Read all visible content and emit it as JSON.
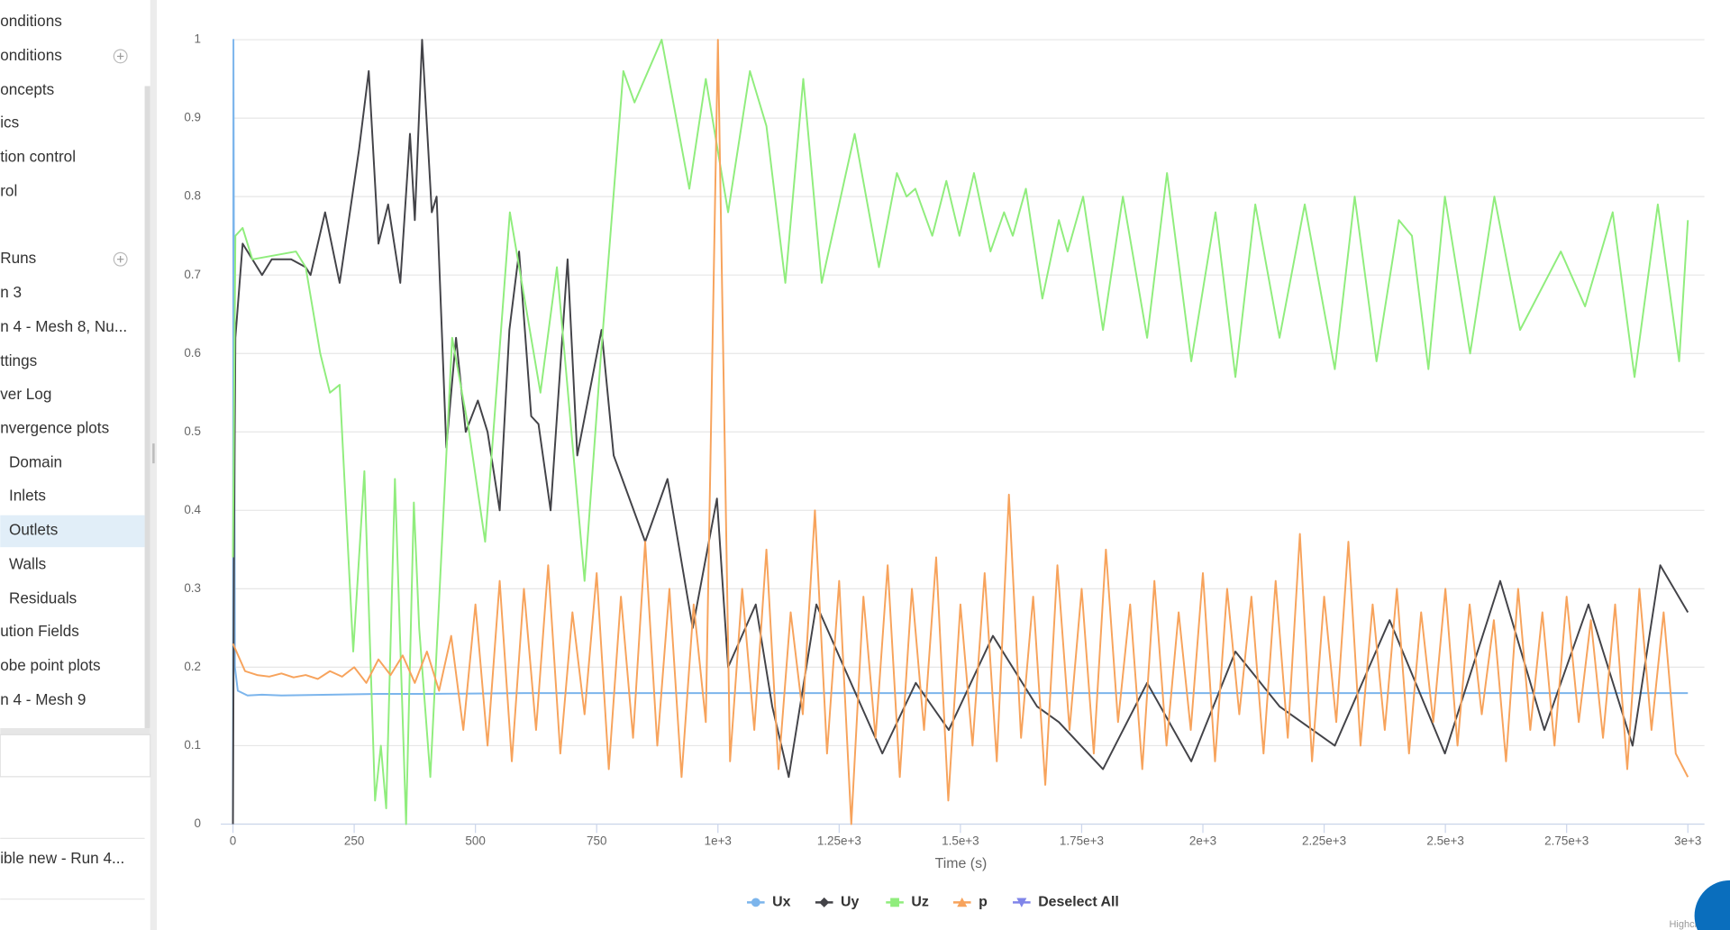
{
  "sidebar": {
    "items": [
      "onditions",
      "onditions",
      "oncepts",
      "ics",
      "tion control",
      "rol",
      "Runs",
      "n 3",
      "n 4 - Mesh 8, Nu...",
      "ttings",
      "ver Log",
      "nvergence plots",
      "Domain",
      "Inlets",
      "Outlets",
      "Walls",
      "Residuals",
      "ution Fields",
      "obe point plots",
      "n 4 - Mesh 9"
    ],
    "lower_item": "ible new - Run 4..."
  },
  "chart_data": {
    "type": "line",
    "xlabel": "Time (s)",
    "credits": "Highcharts.co",
    "deselect": "Deselect All",
    "deselect_color": "#8085e9",
    "xlim": [
      0,
      3000
    ],
    "ylim": [
      0,
      1
    ],
    "xticks": [
      0,
      250,
      500,
      750,
      {
        "value": 1000,
        "label": "1e+3"
      },
      {
        "value": 1250,
        "label": "1.25e+3"
      },
      {
        "value": 1500,
        "label": "1.5e+3"
      },
      {
        "value": 1750,
        "label": "1.75e+3"
      },
      {
        "value": 2000,
        "label": "2e+3"
      },
      {
        "value": 2250,
        "label": "2.25e+3"
      },
      {
        "value": 2500,
        "label": "2.5e+3"
      },
      {
        "value": 2750,
        "label": "2.75e+3"
      },
      {
        "value": 3000,
        "label": "3e+3"
      }
    ],
    "yticks": [
      0,
      0.1,
      0.2,
      0.3,
      0.4,
      0.5,
      0.6,
      0.7,
      0.8,
      0.9,
      1
    ],
    "grid": true,
    "series": [
      {
        "name": "Ux",
        "color": "#7cb5ec",
        "marker": "circle",
        "x": [
          0,
          1,
          4,
          10,
          30,
          60,
          100,
          200,
          300,
          400,
          600,
          1000,
          2000,
          3000
        ],
        "values": [
          0,
          1,
          0.2,
          0.17,
          0.164,
          0.165,
          0.164,
          0.165,
          0.166,
          0.166,
          0.167,
          0.167,
          0.167,
          0.167
        ]
      },
      {
        "name": "Uy",
        "color": "#434348",
        "marker": "diamond",
        "x": [
          0,
          2,
          5,
          20,
          40,
          60,
          80,
          120,
          150,
          160,
          190,
          220,
          260,
          280,
          300,
          320,
          345,
          365,
          375,
          390,
          410,
          420,
          440,
          460,
          480,
          505,
          525,
          550,
          570,
          590,
          615,
          630,
          655,
          690,
          710,
          760,
          785,
          850,
          896,
          948,
          998,
          1021,
          1078,
          1112,
          1146,
          1203,
          1260,
          1339,
          1408,
          1476,
          1567,
          1658,
          1703,
          1794,
          1885,
          1976,
          2067,
          2158,
          2272,
          2385,
          2499,
          2613,
          2704,
          2795,
          2886,
          2943,
          3000
        ],
        "values": [
          0,
          0.33,
          0.62,
          0.74,
          0.72,
          0.7,
          0.72,
          0.72,
          0.71,
          0.7,
          0.78,
          0.69,
          0.86,
          0.96,
          0.74,
          0.79,
          0.69,
          0.88,
          0.77,
          1.0,
          0.78,
          0.8,
          0.48,
          0.62,
          0.5,
          0.54,
          0.5,
          0.4,
          0.63,
          0.73,
          0.52,
          0.51,
          0.4,
          0.72,
          0.47,
          0.63,
          0.47,
          0.36,
          0.44,
          0.25,
          0.415,
          0.2,
          0.28,
          0.15,
          0.06,
          0.28,
          0.2,
          0.09,
          0.18,
          0.12,
          0.24,
          0.15,
          0.13,
          0.07,
          0.18,
          0.08,
          0.22,
          0.15,
          0.1,
          0.26,
          0.09,
          0.31,
          0.12,
          0.28,
          0.1,
          0.33,
          0.27
        ]
      },
      {
        "name": "Uz",
        "color": "#90ed7d",
        "marker": "square",
        "x": [
          0,
          5,
          20,
          40,
          130,
          150,
          180,
          200,
          220,
          248,
          271,
          293,
          305,
          316,
          334,
          357,
          373,
          384,
          407,
          452,
          487,
          520,
          571,
          634,
          668,
          725,
          759,
          805,
          828,
          884,
          941,
          975,
          1021,
          1066,
          1100,
          1139,
          1176,
          1214,
          1282,
          1332,
          1369,
          1389,
          1407,
          1442,
          1471,
          1498,
          1528,
          1562,
          1590,
          1608,
          1635,
          1669,
          1703,
          1721,
          1753,
          1794,
          1835,
          1885,
          1926,
          1976,
          2026,
          2067,
          2108,
          2158,
          2210,
          2272,
          2313,
          2358,
          2404,
          2431,
          2465,
          2499,
          2551,
          2601,
          2654,
          2738,
          2788,
          2845,
          2890,
          2938,
          2982,
          3000
        ],
        "values": [
          0.34,
          0.75,
          0.76,
          0.72,
          0.73,
          0.71,
          0.6,
          0.55,
          0.56,
          0.22,
          0.45,
          0.03,
          0.1,
          0.02,
          0.44,
          0.0,
          0.41,
          0.25,
          0.06,
          0.62,
          0.5,
          0.36,
          0.78,
          0.55,
          0.71,
          0.31,
          0.6,
          0.96,
          0.92,
          1.0,
          0.81,
          0.95,
          0.78,
          0.96,
          0.89,
          0.69,
          0.95,
          0.69,
          0.88,
          0.71,
          0.83,
          0.8,
          0.81,
          0.75,
          0.82,
          0.75,
          0.83,
          0.73,
          0.78,
          0.75,
          0.81,
          0.67,
          0.77,
          0.73,
          0.8,
          0.63,
          0.8,
          0.62,
          0.83,
          0.59,
          0.78,
          0.57,
          0.79,
          0.62,
          0.79,
          0.58,
          0.8,
          0.59,
          0.77,
          0.75,
          0.58,
          0.8,
          0.6,
          0.8,
          0.63,
          0.73,
          0.66,
          0.78,
          0.57,
          0.79,
          0.59,
          0.77
        ]
      },
      {
        "name": "p",
        "color": "#f7a35c",
        "marker": "triangle",
        "x": [
          0,
          25,
          50,
          75,
          100,
          125,
          150,
          175,
          200,
          225,
          250,
          275,
          300,
          325,
          350,
          375,
          400,
          425,
          450,
          475,
          500,
          525,
          550,
          575,
          600,
          625,
          650,
          675,
          700,
          725,
          750,
          775,
          800,
          825,
          850,
          875,
          900,
          925,
          950,
          975,
          1000,
          1025,
          1050,
          1075,
          1100,
          1125,
          1150,
          1175,
          1200,
          1225,
          1250,
          1275,
          1300,
          1325,
          1350,
          1375,
          1400,
          1425,
          1450,
          1475,
          1500,
          1525,
          1550,
          1575,
          1600,
          1625,
          1650,
          1675,
          1700,
          1725,
          1750,
          1775,
          1800,
          1825,
          1850,
          1875,
          1900,
          1925,
          1950,
          1975,
          2000,
          2025,
          2050,
          2075,
          2100,
          2125,
          2150,
          2175,
          2200,
          2225,
          2250,
          2275,
          2300,
          2325,
          2350,
          2375,
          2400,
          2425,
          2450,
          2475,
          2500,
          2525,
          2550,
          2575,
          2600,
          2625,
          2650,
          2675,
          2700,
          2725,
          2750,
          2775,
          2800,
          2825,
          2850,
          2875,
          2900,
          2925,
          2950,
          2975,
          3000
        ],
        "values": [
          0.23,
          0.195,
          0.19,
          0.188,
          0.192,
          0.187,
          0.19,
          0.185,
          0.195,
          0.188,
          0.2,
          0.18,
          0.21,
          0.19,
          0.215,
          0.18,
          0.22,
          0.17,
          0.24,
          0.12,
          0.28,
          0.1,
          0.31,
          0.08,
          0.3,
          0.12,
          0.33,
          0.09,
          0.27,
          0.14,
          0.32,
          0.07,
          0.29,
          0.11,
          0.36,
          0.1,
          0.3,
          0.06,
          0.28,
          0.13,
          1.0,
          0.08,
          0.3,
          0.12,
          0.35,
          0.07,
          0.27,
          0.14,
          0.4,
          0.09,
          0.31,
          0.0,
          0.29,
          0.11,
          0.33,
          0.06,
          0.3,
          0.12,
          0.34,
          0.03,
          0.28,
          0.1,
          0.32,
          0.08,
          0.42,
          0.11,
          0.29,
          0.05,
          0.33,
          0.12,
          0.3,
          0.09,
          0.35,
          0.13,
          0.28,
          0.07,
          0.31,
          0.1,
          0.27,
          0.12,
          0.32,
          0.08,
          0.3,
          0.14,
          0.29,
          0.09,
          0.31,
          0.11,
          0.37,
          0.08,
          0.29,
          0.13,
          0.36,
          0.1,
          0.28,
          0.12,
          0.3,
          0.09,
          0.27,
          0.13,
          0.3,
          0.1,
          0.28,
          0.14,
          0.26,
          0.08,
          0.3,
          0.12,
          0.27,
          0.1,
          0.29,
          0.13,
          0.26,
          0.11,
          0.28,
          0.07,
          0.3,
          0.12,
          0.27,
          0.09,
          0.06
        ]
      }
    ]
  }
}
